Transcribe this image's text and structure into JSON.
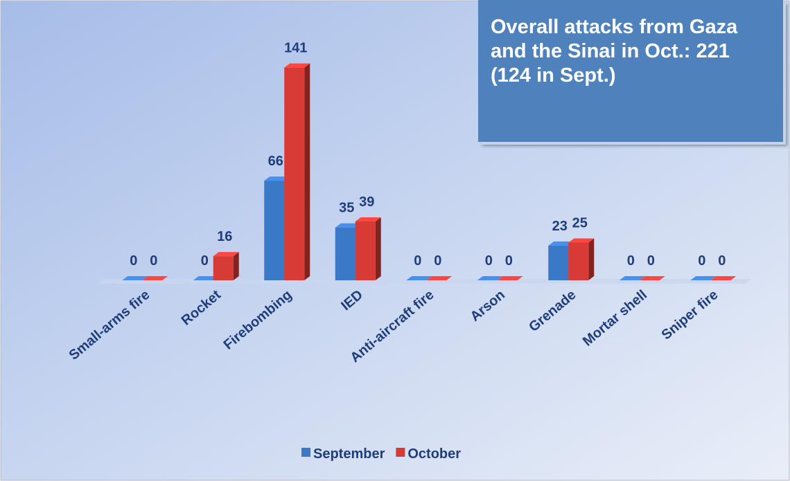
{
  "chart_data": {
    "type": "bar",
    "annotation": "Overall attacks from Gaza and the Sinai in Oct.: 221 (124 in Sept.)",
    "categories": [
      "Small-arms fire",
      "Rocket",
      "Firebombing",
      "IED",
      "Anti-aircraft fire",
      "Arson",
      "Grenade",
      "Mortar shell",
      "Sniper fire"
    ],
    "series": [
      {
        "name": "September",
        "color": "#3a78c8",
        "values": [
          0,
          0,
          66,
          35,
          0,
          0,
          23,
          0,
          0
        ]
      },
      {
        "name": "October",
        "color": "#d83a36",
        "values": [
          0,
          16,
          141,
          39,
          0,
          0,
          25,
          0,
          0
        ]
      }
    ],
    "legend": "bottom"
  }
}
